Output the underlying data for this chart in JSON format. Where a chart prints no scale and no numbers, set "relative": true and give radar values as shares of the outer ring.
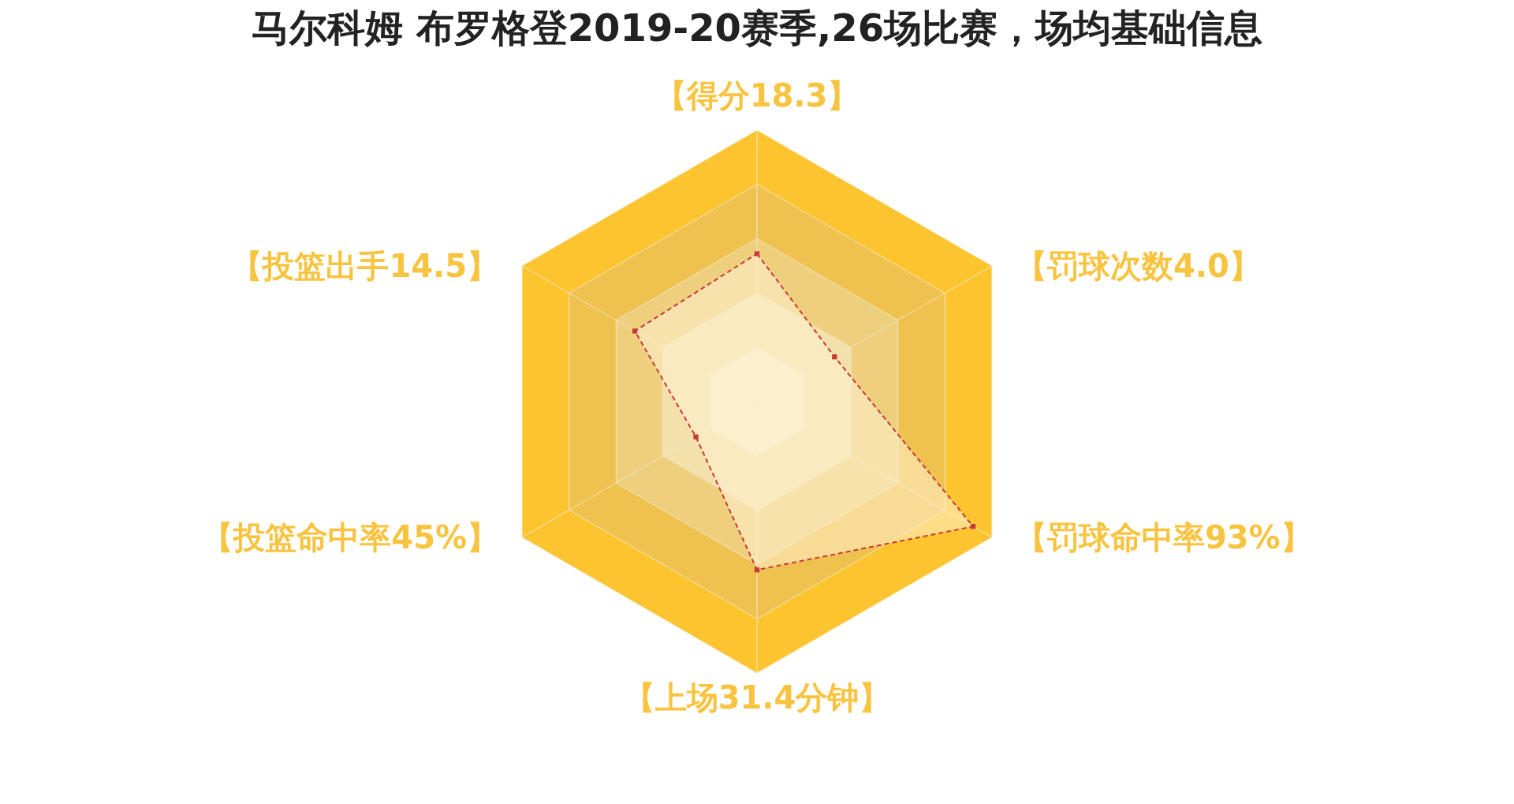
{
  "chart_data": {
    "type": "radar",
    "title": "马尔科姆 布罗格登2019-20赛季,26场比赛，场均基础信息",
    "categories": [
      "【得分18.3】",
      "【罚球次数4.0】",
      "【罚球命中率93%】",
      "【上场31.4分钟】",
      "【投篮命中率45%】",
      "【投篮出手14.5】"
    ],
    "relative": true,
    "grid": true,
    "marker": "square",
    "line_style": "dashed",
    "series": [
      {
        "color": "#c8393b",
        "values": [
          0.545,
          0.33,
          0.92,
          0.62,
          0.26,
          0.52
        ]
      }
    ]
  }
}
